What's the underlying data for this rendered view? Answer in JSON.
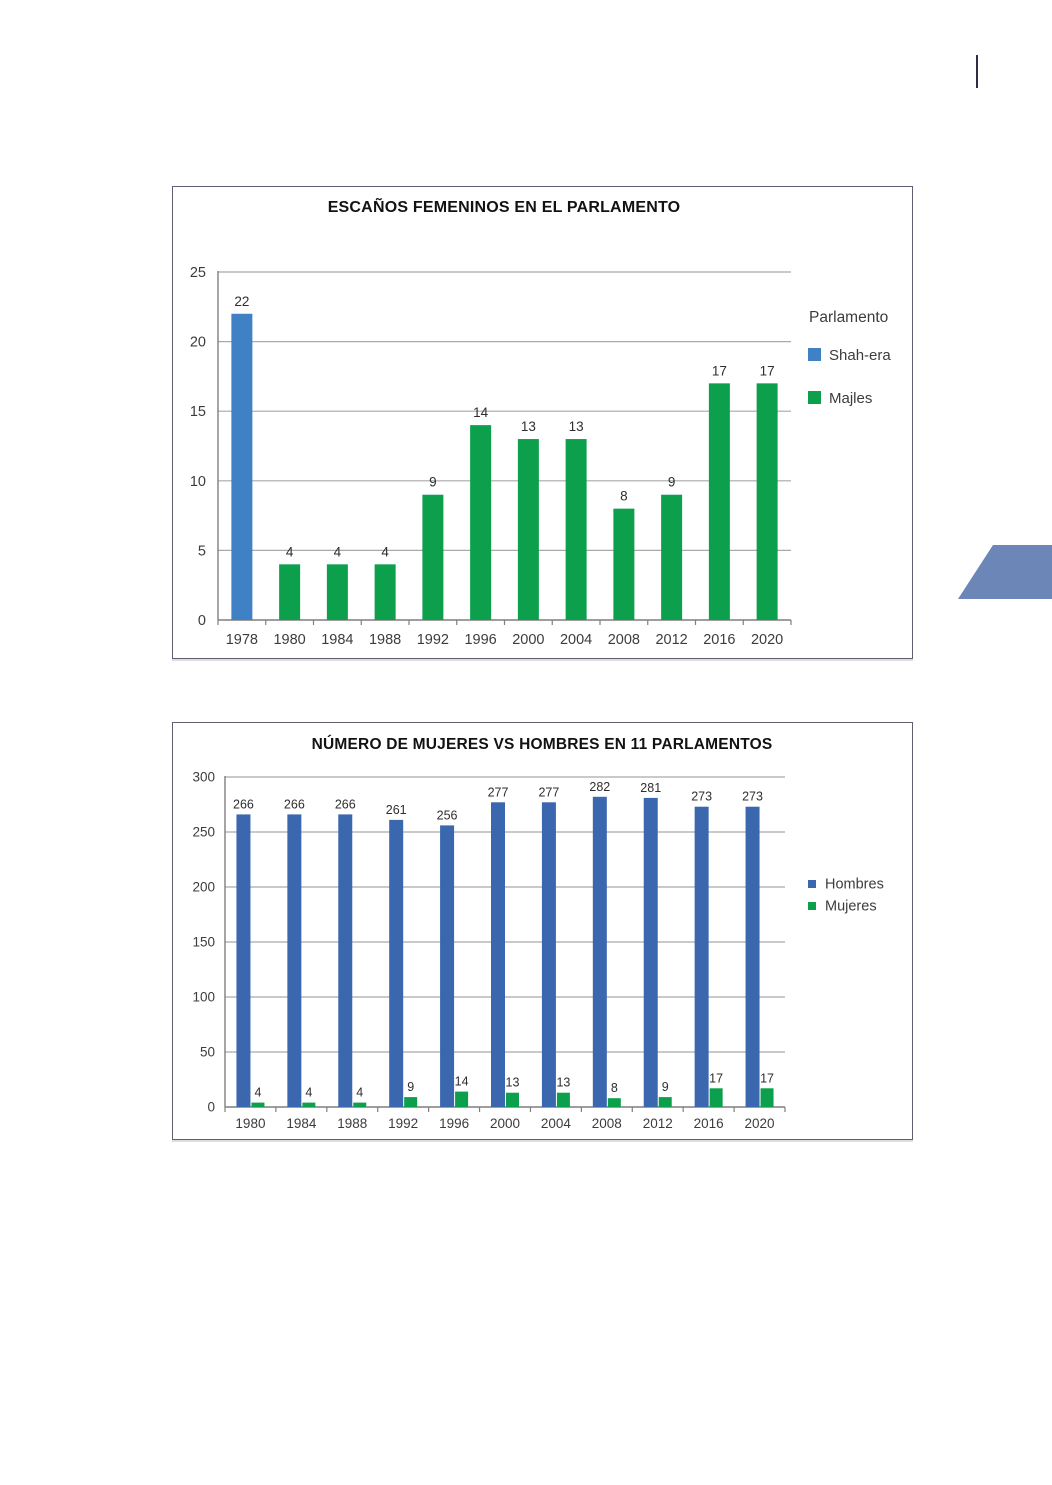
{
  "page": {
    "decorations": {
      "edge_mark_color": "#2f2f44",
      "corner_shape_color": "#6b86b7"
    }
  },
  "chart_data": [
    {
      "type": "bar",
      "title": "ESCAÑOS FEMENINOS EN EL PARLAMENTO",
      "categories": [
        "1978",
        "1980",
        "1984",
        "1988",
        "1992",
        "1996",
        "2000",
        "2004",
        "2008",
        "2012",
        "2016",
        "2020"
      ],
      "values": [
        22,
        4,
        4,
        4,
        9,
        14,
        13,
        13,
        8,
        9,
        17,
        17
      ],
      "groups": [
        "Shah-era",
        "Majles",
        "Majles",
        "Majles",
        "Majles",
        "Majles",
        "Majles",
        "Majles",
        "Majles",
        "Majles",
        "Majles",
        "Majles"
      ],
      "legend_title": "Parlamento",
      "legend": [
        {
          "label": "Shah-era",
          "color": "#4080c4"
        },
        {
          "label": "Majles",
          "color": "#0ca04d"
        }
      ],
      "ylim": [
        0,
        25
      ],
      "yticks": [
        0,
        5,
        10,
        15,
        20,
        25
      ],
      "grid": true,
      "legend_position": "right",
      "xlabel": "",
      "ylabel": ""
    },
    {
      "type": "bar",
      "title": "NÚMERO DE MUJERES VS HOMBRES EN 11 PARLAMENTOS",
      "categories": [
        "1980",
        "1984",
        "1988",
        "1992",
        "1996",
        "2000",
        "2004",
        "2008",
        "2012",
        "2016",
        "2020"
      ],
      "series": [
        {
          "name": "Hombres",
          "color": "#3b67ae",
          "values": [
            266,
            266,
            266,
            261,
            256,
            277,
            277,
            282,
            281,
            273,
            273
          ]
        },
        {
          "name": "Mujeres",
          "color": "#0ca04d",
          "values": [
            4,
            4,
            4,
            9,
            14,
            13,
            13,
            8,
            9,
            17,
            17
          ]
        }
      ],
      "ylim": [
        0,
        300
      ],
      "yticks": [
        0,
        50,
        100,
        150,
        200,
        250,
        300
      ],
      "grid": true,
      "legend_position": "right",
      "xlabel": "",
      "ylabel": ""
    }
  ]
}
